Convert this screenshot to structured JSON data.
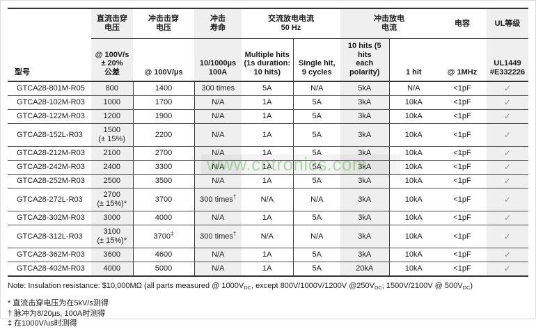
{
  "colors": {
    "column_shade": "#efefef",
    "rule_dark": "#333333",
    "checkmark_gray": "#8f8f8f",
    "watermark_green": "#7aba70"
  },
  "watermark": "www.cntronics.com",
  "table": {
    "model_header": "型号",
    "groups": [
      {
        "label": "直流击穿\n电压"
      },
      {
        "label": "冲击击穿\n电压"
      },
      {
        "label": "冲击\n寿命"
      },
      {
        "label": "交流放电电流\n50 Hz"
      },
      {
        "label": "冲击放电\n电流"
      },
      {
        "label": "电容"
      },
      {
        "label": "UL等级"
      }
    ],
    "subheaders": [
      "@ 100V/s\n± 20%\n公差",
      "@ 100V/µs",
      "10/1000µs\n100A",
      "Multiple hits\n(1s duration:\n10 hits)",
      "Single hit,\n9 cycles",
      "10 hits (5 hits\neach polarity)",
      "1 hit",
      "@ 1MHz",
      "UL1449\n#E332226"
    ],
    "rows": [
      {
        "model": "GTCA28-801M-R05",
        "cells": [
          "800",
          "1400",
          "300 times",
          "5A",
          "N/A",
          "5kA",
          "N/A",
          "<1pF",
          "✓"
        ]
      },
      {
        "model": "GTCA28-102M-R03",
        "cells": [
          "1000",
          "1700",
          "N/A",
          "1A",
          "5A",
          "3kA",
          "10kA",
          "<1pF",
          "✓"
        ]
      },
      {
        "model": "GTCA28-122M-R03",
        "cells": [
          "1200",
          "1900",
          "N/A",
          "1A",
          "5A",
          "3kA",
          "10kA",
          "<1pF",
          "✓"
        ]
      },
      {
        "model": "GTCA28-152L-R03",
        "cells": [
          "1500\n(± 15%)",
          "2200",
          "N/A",
          "1A",
          "5A",
          "3kA",
          "10kA",
          "<1pF",
          "✓"
        ]
      },
      {
        "model": "GTCA28-212M-R03",
        "cells": [
          "2100",
          "2700",
          "N/A",
          "1A",
          "5A",
          "3kA",
          "10kA",
          "<1pF",
          "✓"
        ]
      },
      {
        "model": "GTCA28-242M-R03",
        "cells": [
          "2400",
          "3300",
          "N/A",
          "1A",
          "5A",
          "3kA",
          "10kA",
          "<1pF",
          "✓"
        ]
      },
      {
        "model": "GTCA28-252M-R03",
        "cells": [
          "2500",
          "3500",
          "N/A",
          "1A",
          "5A",
          "3kA",
          "10kA",
          "<1pF",
          "✓"
        ]
      },
      {
        "model": "GTCA28-272L-R03",
        "cells": [
          "2700\n(± 15%)*",
          "3700",
          "300 times†",
          "N/A",
          "N/A",
          "3kA",
          "10kA",
          "<1pF",
          "✓"
        ]
      },
      {
        "model": "GTCA28-302M-R03",
        "cells": [
          "3000",
          "4000",
          "N/A",
          "1A",
          "5A",
          "3kA",
          "10kA",
          "<1pF",
          "✓"
        ]
      },
      {
        "model": "GTCA28-312L-R03",
        "cells": [
          "3100\n(± 15%)*",
          "3700‡",
          "300 times†",
          "N/A",
          "N/A",
          "3kA",
          "10kA",
          "<1pF",
          "✓"
        ]
      },
      {
        "model": "GTCA28-362M-R03",
        "cells": [
          "3600",
          "4600",
          "N/A",
          "1A",
          "5A",
          "3kA",
          "10kA",
          "<1pF",
          "✓"
        ]
      },
      {
        "model": "GTCA28-402M-R03",
        "cells": [
          "4000",
          "5000",
          "N/A",
          "1A",
          "5A",
          "20kA",
          "10kA",
          "<1pF",
          "✓"
        ]
      }
    ]
  },
  "notes": {
    "main_segments": [
      {
        "text": "Note: Insulation resistance: $10,000MΩ (all parts measured @ 1000V"
      },
      {
        "text": "DC"
      },
      {
        "text": ", except 800V/1000V/1200V @250V"
      },
      {
        "text": "DC"
      },
      {
        "text": "; 1500V/2100V @ 500V"
      },
      {
        "text": "DC"
      },
      {
        "text": ")"
      }
    ],
    "footnotes": [
      "* 直流击穿电压为在5kV/s测得",
      "† 脉冲为8/20µs, 100A时测得",
      "‡ 在1000V/us时测得"
    ]
  }
}
